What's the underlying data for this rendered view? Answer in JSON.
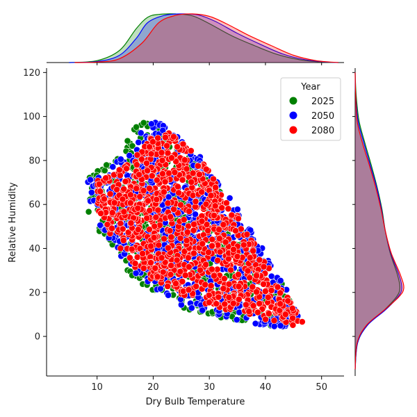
{
  "chart_data": {
    "type": "scatter",
    "subtype": "jointplot-with-kde-marginals",
    "xlabel": "Dry Bulb Temperature",
    "ylabel": "Relative Humidity",
    "xlim": [
      1,
      54
    ],
    "ylim": [
      -18,
      122
    ],
    "xticks": [
      10,
      20,
      30,
      40,
      50
    ],
    "yticks": [
      0,
      20,
      40,
      60,
      80,
      100,
      120
    ],
    "legend": {
      "title": "Year",
      "position": "upper-right"
    },
    "series": [
      {
        "name": "2025",
        "color": "#008000",
        "outline": [
          [
            8,
            72
          ],
          [
            10,
            76
          ],
          [
            14,
            82
          ],
          [
            17,
            97
          ],
          [
            19,
            100
          ],
          [
            23,
            93
          ],
          [
            27,
            82
          ],
          [
            31,
            70
          ],
          [
            36,
            50
          ],
          [
            41,
            33
          ],
          [
            45,
            15
          ],
          [
            46,
            8
          ],
          [
            43,
            3
          ],
          [
            36,
            6
          ],
          [
            30,
            9
          ],
          [
            24,
            13
          ],
          [
            19,
            22
          ],
          [
            15,
            30
          ],
          [
            11,
            45
          ],
          [
            8,
            55
          ]
        ],
        "kde_x": [
          [
            5,
            0
          ],
          [
            10,
            0.04
          ],
          [
            14,
            0.25
          ],
          [
            17,
            0.7
          ],
          [
            19,
            0.93
          ],
          [
            21,
            0.99
          ],
          [
            24,
            1.0
          ],
          [
            27,
            0.96
          ],
          [
            30,
            0.8
          ],
          [
            34,
            0.55
          ],
          [
            38,
            0.35
          ],
          [
            42,
            0.17
          ],
          [
            46,
            0.06
          ],
          [
            50,
            0.01
          ],
          [
            53,
            0
          ]
        ],
        "kde_y": [
          [
            -15,
            0
          ],
          [
            -3,
            0.05
          ],
          [
            5,
            0.25
          ],
          [
            12,
            0.6
          ],
          [
            18,
            0.85
          ],
          [
            22,
            0.92
          ],
          [
            28,
            0.87
          ],
          [
            38,
            0.72
          ],
          [
            48,
            0.62
          ],
          [
            58,
            0.55
          ],
          [
            68,
            0.45
          ],
          [
            78,
            0.33
          ],
          [
            88,
            0.2
          ],
          [
            98,
            0.08
          ],
          [
            110,
            0.02
          ],
          [
            120,
            0
          ]
        ]
      },
      {
        "name": "2050",
        "color": "#0000ff",
        "outline": [
          [
            8,
            72
          ],
          [
            11,
            75
          ],
          [
            15,
            82
          ],
          [
            18,
            95
          ],
          [
            21,
            99
          ],
          [
            25,
            90
          ],
          [
            29,
            80
          ],
          [
            33,
            66
          ],
          [
            37,
            50
          ],
          [
            42,
            30
          ],
          [
            45,
            15
          ],
          [
            46,
            8
          ],
          [
            43,
            4
          ],
          [
            37,
            6
          ],
          [
            31,
            10
          ],
          [
            25,
            14
          ],
          [
            20,
            22
          ],
          [
            16,
            30
          ],
          [
            12,
            45
          ],
          [
            9,
            55
          ]
        ],
        "kde_x": [
          [
            5,
            0
          ],
          [
            10,
            0.02
          ],
          [
            14,
            0.15
          ],
          [
            17,
            0.5
          ],
          [
            19,
            0.82
          ],
          [
            22,
            0.97
          ],
          [
            25,
            1.0
          ],
          [
            28,
            0.98
          ],
          [
            31,
            0.85
          ],
          [
            35,
            0.6
          ],
          [
            39,
            0.38
          ],
          [
            43,
            0.18
          ],
          [
            47,
            0.06
          ],
          [
            51,
            0.01
          ],
          [
            53,
            0
          ]
        ],
        "kde_y": [
          [
            -15,
            0
          ],
          [
            -3,
            0.05
          ],
          [
            5,
            0.25
          ],
          [
            12,
            0.62
          ],
          [
            18,
            0.88
          ],
          [
            22,
            0.96
          ],
          [
            28,
            0.9
          ],
          [
            38,
            0.73
          ],
          [
            48,
            0.62
          ],
          [
            58,
            0.54
          ],
          [
            68,
            0.44
          ],
          [
            78,
            0.31
          ],
          [
            88,
            0.18
          ],
          [
            98,
            0.06
          ],
          [
            110,
            0.01
          ],
          [
            120,
            0
          ]
        ]
      },
      {
        "name": "2080",
        "color": "#ff0000",
        "outline": [
          [
            10,
            74
          ],
          [
            13,
            76
          ],
          [
            16,
            80
          ],
          [
            20,
            92
          ],
          [
            23,
            93
          ],
          [
            26,
            86
          ],
          [
            29,
            80
          ],
          [
            32,
            66
          ],
          [
            35,
            55
          ],
          [
            39,
            38
          ],
          [
            42,
            25
          ],
          [
            46,
            10
          ],
          [
            48,
            7
          ],
          [
            45,
            5
          ],
          [
            39,
            8
          ],
          [
            33,
            12
          ],
          [
            27,
            16
          ],
          [
            21,
            24
          ],
          [
            16,
            32
          ],
          [
            12,
            48
          ],
          [
            10,
            58
          ]
        ],
        "kde_x": [
          [
            6,
            0
          ],
          [
            10,
            0.01
          ],
          [
            14,
            0.08
          ],
          [
            18,
            0.4
          ],
          [
            21,
            0.82
          ],
          [
            24,
            0.97
          ],
          [
            27,
            1.0
          ],
          [
            30,
            0.95
          ],
          [
            33,
            0.8
          ],
          [
            37,
            0.56
          ],
          [
            41,
            0.35
          ],
          [
            45,
            0.15
          ],
          [
            49,
            0.04
          ],
          [
            53,
            0
          ]
        ],
        "kde_y": [
          [
            -15,
            0
          ],
          [
            -3,
            0.04
          ],
          [
            5,
            0.23
          ],
          [
            12,
            0.6
          ],
          [
            18,
            0.9
          ],
          [
            22,
            1.0
          ],
          [
            28,
            0.93
          ],
          [
            38,
            0.74
          ],
          [
            48,
            0.62
          ],
          [
            58,
            0.53
          ],
          [
            68,
            0.42
          ],
          [
            78,
            0.29
          ],
          [
            88,
            0.15
          ],
          [
            98,
            0.04
          ],
          [
            110,
            0.01
          ],
          [
            120,
            0
          ]
        ]
      }
    ]
  }
}
